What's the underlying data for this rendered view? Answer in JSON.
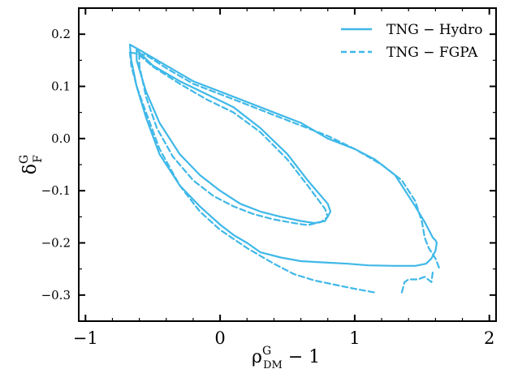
{
  "chart_data": {
    "type": "contour",
    "xlabel_base": "ρ",
    "xlabel_sup": "G",
    "xlabel_sub": "DM",
    "xlabel_tail": " − 1",
    "ylabel_base": "δ",
    "ylabel_sup": "G",
    "ylabel_sub": "F",
    "xlim": [
      -1.05,
      2.05
    ],
    "ylim": [
      -0.35,
      0.25
    ],
    "x_ticks": [
      -1,
      0,
      1,
      2
    ],
    "x_tick_labels": [
      "−1",
      "0",
      "1",
      "2"
    ],
    "y_ticks": [
      0.2,
      0.1,
      0.0,
      -0.1,
      -0.2,
      -0.3
    ],
    "y_tick_labels": [
      "0.2",
      "0.1",
      "0.0",
      "−0.1",
      "−0.2",
      "−0.3"
    ],
    "legend_position": "top-right",
    "color": "#3fb8e8",
    "series": [
      {
        "name": "TNG − Hydro",
        "style": "solid",
        "contours": [
          [
            [
              -0.62,
              0.17
            ],
            [
              -0.5,
              0.14
            ],
            [
              -0.3,
              0.11
            ],
            [
              -0.1,
              0.085
            ],
            [
              0.1,
              0.06
            ],
            [
              0.3,
              0.02
            ],
            [
              0.5,
              -0.03
            ],
            [
              0.65,
              -0.08
            ],
            [
              0.8,
              -0.125
            ],
            [
              0.82,
              -0.14
            ],
            [
              0.78,
              -0.158
            ],
            [
              0.7,
              -0.162
            ],
            [
              0.6,
              -0.158
            ],
            [
              0.45,
              -0.15
            ],
            [
              0.3,
              -0.14
            ],
            [
              0.15,
              -0.125
            ],
            [
              0.0,
              -0.1
            ],
            [
              -0.15,
              -0.07
            ],
            [
              -0.3,
              -0.03
            ],
            [
              -0.45,
              0.03
            ],
            [
              -0.55,
              0.09
            ],
            [
              -0.62,
              0.15
            ],
            [
              -0.62,
              0.17
            ]
          ],
          [
            [
              -0.67,
              0.18
            ],
            [
              -0.6,
              0.17
            ],
            [
              -0.4,
              0.14
            ],
            [
              -0.2,
              0.11
            ],
            [
              0.0,
              0.09
            ],
            [
              0.2,
              0.07
            ],
            [
              0.4,
              0.05
            ],
            [
              0.6,
              0.03
            ],
            [
              0.8,
              0.0
            ],
            [
              1.0,
              -0.02
            ],
            [
              1.15,
              -0.04
            ],
            [
              1.3,
              -0.07
            ],
            [
              1.45,
              -0.13
            ],
            [
              1.52,
              -0.16
            ],
            [
              1.55,
              -0.175
            ],
            [
              1.58,
              -0.19
            ],
            [
              1.6,
              -0.195
            ],
            [
              1.61,
              -0.2
            ],
            [
              1.6,
              -0.215
            ],
            [
              1.57,
              -0.23
            ],
            [
              1.53,
              -0.24
            ],
            [
              1.45,
              -0.244
            ],
            [
              1.3,
              -0.244
            ],
            [
              1.1,
              -0.243
            ],
            [
              0.95,
              -0.24
            ],
            [
              0.8,
              -0.238
            ],
            [
              0.6,
              -0.235
            ],
            [
              0.45,
              -0.228
            ],
            [
              0.3,
              -0.218
            ],
            [
              0.2,
              -0.2
            ],
            [
              0.1,
              -0.185
            ],
            [
              0.0,
              -0.165
            ],
            [
              -0.15,
              -0.13
            ],
            [
              -0.3,
              -0.09
            ],
            [
              -0.45,
              -0.03
            ],
            [
              -0.55,
              0.04
            ],
            [
              -0.62,
              0.1
            ],
            [
              -0.66,
              0.15
            ],
            [
              -0.67,
              0.18
            ]
          ]
        ]
      },
      {
        "name": "TNG − FGPA",
        "style": "dashed",
        "contours": [
          [
            [
              -0.6,
              0.16
            ],
            [
              -0.5,
              0.138
            ],
            [
              -0.3,
              0.105
            ],
            [
              -0.1,
              0.075
            ],
            [
              0.1,
              0.05
            ],
            [
              0.3,
              0.012
            ],
            [
              0.5,
              -0.04
            ],
            [
              0.65,
              -0.09
            ],
            [
              0.78,
              -0.135
            ],
            [
              0.8,
              -0.15
            ],
            [
              0.75,
              -0.16
            ],
            [
              0.65,
              -0.166
            ],
            [
              0.55,
              -0.162
            ],
            [
              0.4,
              -0.155
            ],
            [
              0.25,
              -0.145
            ],
            [
              0.1,
              -0.13
            ],
            [
              -0.05,
              -0.11
            ],
            [
              -0.2,
              -0.08
            ],
            [
              -0.35,
              -0.035
            ],
            [
              -0.47,
              0.02
            ],
            [
              -0.55,
              0.08
            ],
            [
              -0.6,
              0.14
            ],
            [
              -0.6,
              0.16
            ]
          ],
          [
            [
              -0.67,
              0.165
            ],
            [
              -0.55,
              0.16
            ],
            [
              -0.4,
              0.135
            ],
            [
              -0.2,
              0.105
            ],
            [
              0.0,
              0.085
            ],
            [
              0.2,
              0.065
            ],
            [
              0.4,
              0.045
            ],
            [
              0.6,
              0.025
            ],
            [
              0.8,
              0.005
            ],
            [
              1.0,
              -0.02
            ],
            [
              1.2,
              -0.05
            ],
            [
              1.35,
              -0.08
            ],
            [
              1.45,
              -0.12
            ],
            [
              1.5,
              -0.16
            ],
            [
              1.52,
              -0.19
            ],
            [
              1.55,
              -0.21
            ],
            [
              1.6,
              -0.23
            ],
            [
              1.63,
              -0.25
            ]
          ],
          [
            [
              -0.67,
              0.165
            ],
            [
              -0.66,
              0.14
            ],
            [
              -0.62,
              0.1
            ],
            [
              -0.55,
              0.05
            ],
            [
              -0.45,
              -0.02
            ],
            [
              -0.3,
              -0.09
            ],
            [
              -0.15,
              -0.14
            ],
            [
              0.0,
              -0.175
            ],
            [
              0.2,
              -0.21
            ],
            [
              0.4,
              -0.24
            ],
            [
              0.55,
              -0.26
            ],
            [
              0.7,
              -0.272
            ],
            [
              0.85,
              -0.28
            ],
            [
              1.0,
              -0.288
            ],
            [
              1.15,
              -0.295
            ]
          ],
          [
            [
              1.35,
              -0.295
            ],
            [
              1.37,
              -0.275
            ],
            [
              1.4,
              -0.27
            ],
            [
              1.47,
              -0.27
            ],
            [
              1.52,
              -0.265
            ],
            [
              1.57,
              -0.275
            ],
            [
              1.58,
              -0.255
            ]
          ]
        ]
      }
    ]
  }
}
